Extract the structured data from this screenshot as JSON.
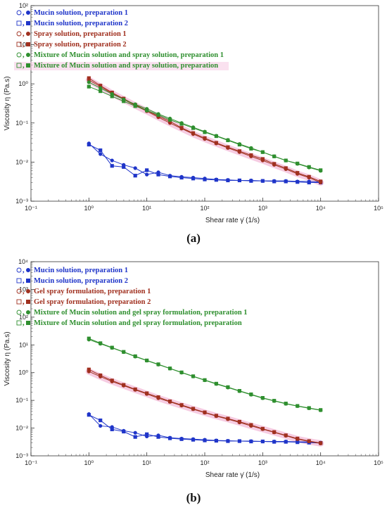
{
  "chart_data": [
    {
      "type": "line",
      "panel_label": "(a)",
      "xlabel": "Shear rate  γ̇  (1/s)",
      "ylabel": "Viscosity  η  (Pa.s)",
      "xscale": "log",
      "yscale": "log",
      "xlim": [
        0.1,
        100000
      ],
      "ylim": [
        0.001,
        100
      ],
      "xticks": [
        "10⁻¹",
        "10⁰",
        "10¹",
        "10²",
        "10³",
        "10⁴",
        "10⁵"
      ],
      "yticks": [
        "10⁻³",
        "10⁻²",
        "10⁻¹",
        "10⁰",
        "10¹",
        "10²"
      ],
      "legend_position": "top-left",
      "x": [
        1,
        1.58,
        2.51,
        3.98,
        6.31,
        10,
        15.8,
        25.1,
        39.8,
        63.1,
        100,
        158,
        251,
        398,
        631,
        1000,
        1580,
        2510,
        3980,
        6310,
        10000
      ],
      "series": [
        {
          "name": "Mucin solution, preparation 1",
          "color": "#1f35c9",
          "marker": "circle",
          "values": [
            0.03,
            0.016,
            0.011,
            0.0085,
            0.007,
            0.0048,
            0.0055,
            0.0045,
            0.0042,
            0.004,
            0.0038,
            0.0036,
            0.0035,
            0.0034,
            0.0034,
            0.0033,
            0.0033,
            0.0033,
            0.0032,
            0.0032,
            0.0031
          ]
        },
        {
          "name": "Mucin solution, preparation 2",
          "color": "#1f35c9",
          "marker": "square",
          "values": [
            0.028,
            0.02,
            0.008,
            0.0075,
            0.0045,
            0.0062,
            0.0048,
            0.0043,
            0.004,
            0.0038,
            0.0036,
            0.0035,
            0.0034,
            0.0034,
            0.0033,
            0.0033,
            0.0032,
            0.0032,
            0.0031,
            0.003,
            0.003
          ]
        },
        {
          "name": "Spray solution, preparation 1",
          "color": "#a0301f",
          "marker": "circle",
          "values": [
            1.25,
            0.85,
            0.57,
            0.4,
            0.28,
            0.2,
            0.14,
            0.1,
            0.072,
            0.052,
            0.039,
            0.03,
            0.023,
            0.018,
            0.014,
            0.011,
            0.0085,
            0.0066,
            0.005,
            0.004,
            0.003
          ]
        },
        {
          "name": "Spray solution, preparation 2",
          "color": "#a0301f",
          "marker": "square",
          "values": [
            1.4,
            0.9,
            0.6,
            0.42,
            0.29,
            0.21,
            0.15,
            0.11,
            0.075,
            0.055,
            0.041,
            0.031,
            0.024,
            0.019,
            0.015,
            0.012,
            0.009,
            0.007,
            0.0053,
            0.0042,
            0.0032
          ]
        },
        {
          "name": "Mixture of Mucin solution and spray solution, preparation 1",
          "color": "#2f8f2f",
          "marker": "circle",
          "values": [
            1.1,
            0.78,
            0.55,
            0.4,
            0.3,
            0.23,
            0.17,
            0.13,
            0.1,
            0.078,
            0.06,
            0.047,
            0.037,
            0.029,
            0.023,
            0.018,
            0.014,
            0.011,
            0.009,
            0.0073,
            0.006
          ]
        },
        {
          "name": "Mixture of Mucin solution and spray solution, preparation",
          "color": "#2f8f2f",
          "marker": "square",
          "values": [
            0.85,
            0.65,
            0.48,
            0.36,
            0.27,
            0.21,
            0.16,
            0.12,
            0.095,
            0.074,
            0.058,
            0.046,
            0.036,
            0.028,
            0.022,
            0.018,
            0.014,
            0.011,
            0.0092,
            0.0075,
            0.0062
          ]
        }
      ]
    },
    {
      "type": "line",
      "panel_label": "(b)",
      "xlabel": "Shear rate  γ̇  (1/s)",
      "ylabel": "Viscosity  η  (Pa.s)",
      "xscale": "log",
      "yscale": "log",
      "xlim": [
        0.1,
        100000
      ],
      "ylim": [
        0.001,
        10000
      ],
      "xticks": [
        "10⁻¹",
        "10⁰",
        "10¹",
        "10²",
        "10³",
        "10⁴",
        "10⁵"
      ],
      "yticks": [
        "10⁻³",
        "10⁻²",
        "10⁻¹",
        "10⁰",
        "10¹",
        "10²",
        "10³",
        "10⁴"
      ],
      "legend_position": "top-left",
      "x": [
        1,
        1.58,
        2.51,
        3.98,
        6.31,
        10,
        15.8,
        25.1,
        39.8,
        63.1,
        100,
        158,
        251,
        398,
        631,
        1000,
        1580,
        2510,
        3980,
        6310,
        10000
      ],
      "series": [
        {
          "name": "Mucin solution, preparation 1",
          "color": "#1f35c9",
          "marker": "circle",
          "values": [
            0.032,
            0.012,
            0.011,
            0.008,
            0.0068,
            0.005,
            0.0055,
            0.0045,
            0.0042,
            0.004,
            0.0038,
            0.0036,
            0.0035,
            0.0034,
            0.0034,
            0.0033,
            0.0033,
            0.0033,
            0.0032,
            0.0032,
            0.003
          ]
        },
        {
          "name": "Mucin solution, preparation 2",
          "color": "#1f35c9",
          "marker": "square",
          "values": [
            0.03,
            0.019,
            0.009,
            0.0075,
            0.0048,
            0.006,
            0.0048,
            0.0043,
            0.004,
            0.0038,
            0.0036,
            0.0035,
            0.0034,
            0.0034,
            0.0033,
            0.0033,
            0.0032,
            0.0032,
            0.0031,
            0.003,
            0.0029
          ]
        },
        {
          "name": "Gel spray formulation, preparation 1",
          "color": "#a0301f",
          "marker": "circle",
          "values": [
            1.1,
            0.72,
            0.48,
            0.34,
            0.24,
            0.17,
            0.12,
            0.088,
            0.065,
            0.048,
            0.036,
            0.027,
            0.021,
            0.016,
            0.012,
            0.0092,
            0.007,
            0.0053,
            0.004,
            0.0033,
            0.0028
          ]
        },
        {
          "name": "Gel spray formulation, preparation 2",
          "color": "#a0301f",
          "marker": "square",
          "values": [
            1.3,
            0.8,
            0.52,
            0.36,
            0.25,
            0.18,
            0.13,
            0.092,
            0.068,
            0.05,
            0.037,
            0.028,
            0.022,
            0.017,
            0.013,
            0.0095,
            0.0072,
            0.0055,
            0.0042,
            0.0034,
            0.0029
          ]
        },
        {
          "name": "Mixture of Mucin solution and gel spray formulation, preparation 1",
          "color": "#2f8f2f",
          "marker": "circle",
          "values": [
            15.5,
            11.0,
            7.8,
            5.5,
            3.8,
            2.7,
            1.95,
            1.4,
            1.0,
            0.73,
            0.53,
            0.39,
            0.29,
            0.215,
            0.16,
            0.12,
            0.095,
            0.075,
            0.062,
            0.052,
            0.044
          ]
        },
        {
          "name": "Mixture of Mucin solution and gel spray formulation, preparation",
          "color": "#2f8f2f",
          "marker": "square",
          "values": [
            17.0,
            11.5,
            8.0,
            5.6,
            3.9,
            2.75,
            2.0,
            1.42,
            1.02,
            0.74,
            0.54,
            0.4,
            0.3,
            0.22,
            0.165,
            0.123,
            0.097,
            0.077,
            0.063,
            0.053,
            0.045
          ]
        }
      ]
    }
  ]
}
